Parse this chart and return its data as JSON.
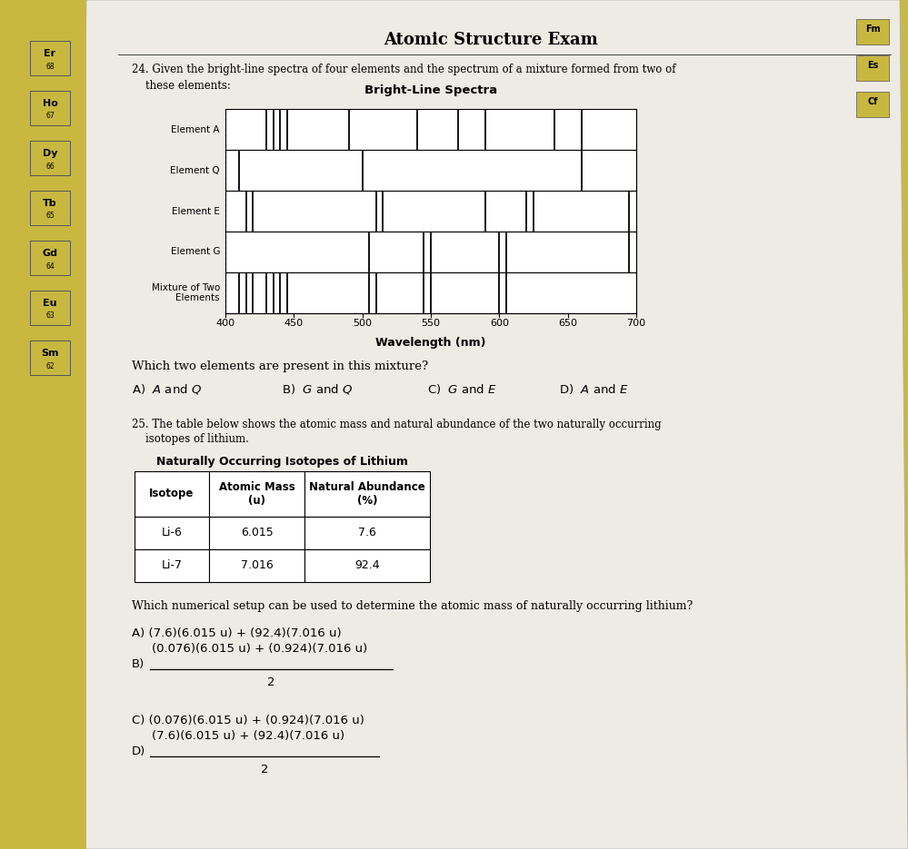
{
  "title": "Atomic Structure Exam",
  "q24_text_line1": "24. Given the bright-line spectra of four elements and the spectrum of a mixture formed from two of",
  "q24_text_line2": "    these elements:",
  "spectra_title": "Bright-Line Spectra",
  "elements": [
    "Element A",
    "Element Q",
    "Element E",
    "Element G",
    "Mixture of Two\nElements"
  ],
  "wavelength_range": [
    400,
    700
  ],
  "wavelength_ticks": [
    400,
    450,
    500,
    550,
    600,
    650,
    700
  ],
  "wavelength_label": "Wavelength (nm)",
  "spectral_lines": {
    "Element A": [
      430,
      435,
      440,
      445,
      490,
      540,
      570,
      590,
      640,
      660
    ],
    "Element Q": [
      410,
      500,
      660
    ],
    "Element E": [
      415,
      420,
      510,
      515,
      590,
      620,
      625,
      695
    ],
    "Element G": [
      505,
      545,
      550,
      600,
      605,
      695
    ],
    "Mixture of Two\nElements": [
      410,
      415,
      420,
      430,
      435,
      440,
      445,
      505,
      510,
      545,
      550,
      600,
      605
    ]
  },
  "q24_question": "Which two elements are present in this mixture?",
  "q24_options": [
    "A)  A and Q",
    "B)  G and Q",
    "C)  G and E",
    "D)  A and E"
  ],
  "q25_text_line1": "25. The table below shows the atomic mass and natural abundance of the two naturally occurring",
  "q25_text_line2": "    isotopes of lithium.",
  "table_title": "Naturally Occurring Isotopes of Lithium",
  "table_headers": [
    "Isotope",
    "Atomic Mass\n(u)",
    "Natural Abundance\n(%)"
  ],
  "table_rows": [
    [
      "Li-6",
      "6.015",
      "7.6"
    ],
    [
      "Li-7",
      "7.016",
      "92.4"
    ]
  ],
  "q25_question": "Which numerical setup can be used to determine the atomic mass of naturally occurring lithium?",
  "q25_A": "A) (7.6)(6.015 u) + (92.4)(7.016 u)",
  "q25_B_num": "(0.076)(6.015 u) + (0.924)(7.016 u)",
  "q25_C": "C) (0.076)(6.015 u) + (0.924)(7.016 u)",
  "q25_D_num": "(7.6)(6.015 u) + (92.4)(7.016 u)",
  "bg_color": "#c8b84a",
  "paper_color": "#f0ede8",
  "doc_bg": "#e8e4de"
}
